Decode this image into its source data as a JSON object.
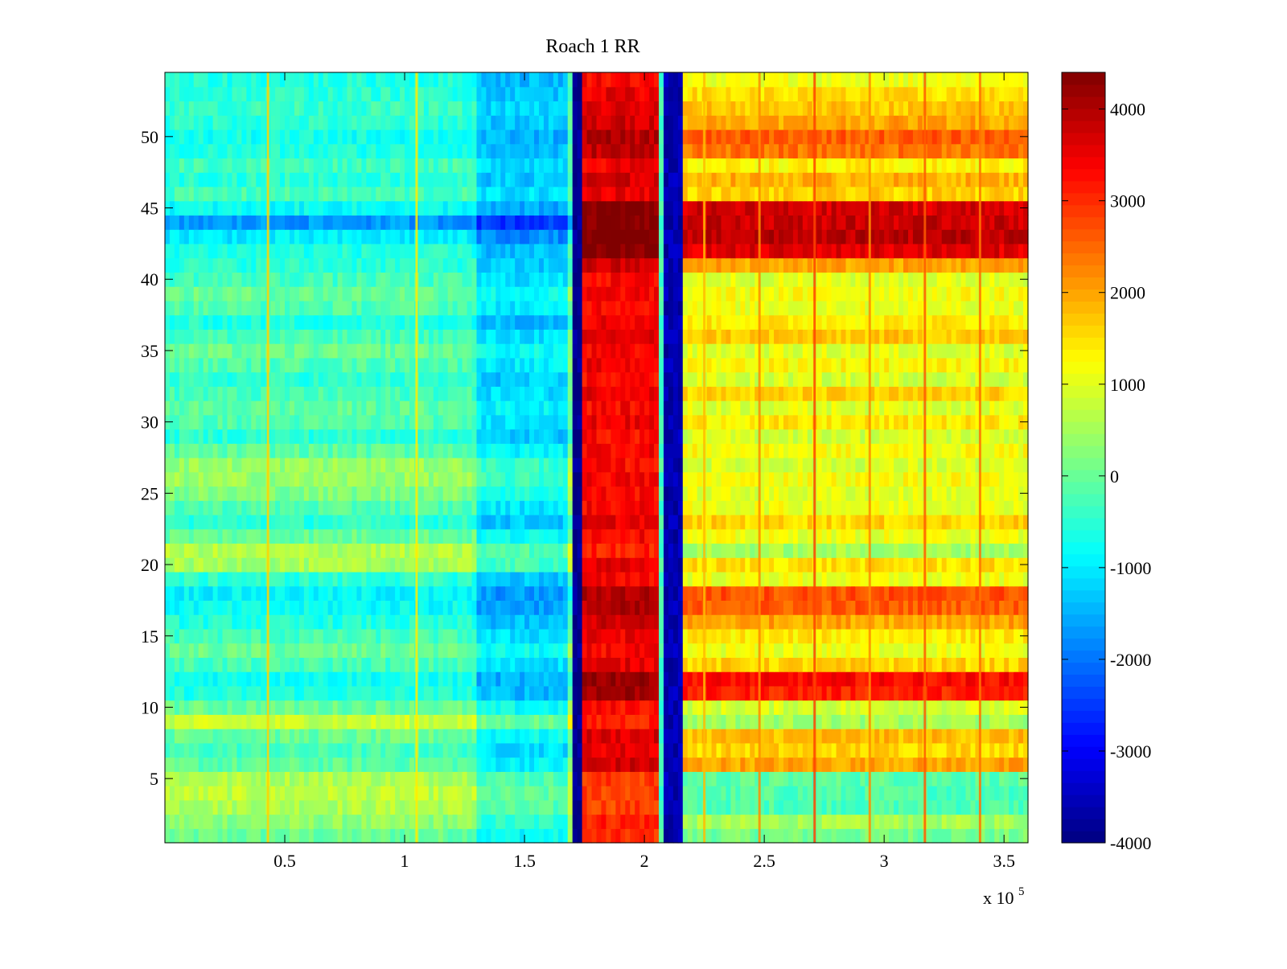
{
  "chart_data": {
    "type": "heatmap",
    "title": "Roach 1 RR",
    "xlabel": "",
    "ylabel": "",
    "x_exponent_label": "x 10",
    "x_exponent_power": "5",
    "x_range": [
      0,
      3.6
    ],
    "y_range": [
      0.5,
      54.5
    ],
    "x_ticks": [
      {
        "value": 0.5,
        "label": "0.5"
      },
      {
        "value": 1.0,
        "label": "1"
      },
      {
        "value": 1.5,
        "label": "1.5"
      },
      {
        "value": 2.0,
        "label": "2"
      },
      {
        "value": 2.5,
        "label": "2.5"
      },
      {
        "value": 3.0,
        "label": "3"
      },
      {
        "value": 3.5,
        "label": "3.5"
      }
    ],
    "y_ticks": [
      {
        "value": 5,
        "label": "5"
      },
      {
        "value": 10,
        "label": "10"
      },
      {
        "value": 15,
        "label": "15"
      },
      {
        "value": 20,
        "label": "20"
      },
      {
        "value": 25,
        "label": "25"
      },
      {
        "value": 30,
        "label": "30"
      },
      {
        "value": 35,
        "label": "35"
      },
      {
        "value": 40,
        "label": "40"
      },
      {
        "value": 45,
        "label": "45"
      },
      {
        "value": 50,
        "label": "50"
      }
    ],
    "rows": 54,
    "colorbar": {
      "colormap": "jet",
      "range": [
        -4000,
        4400
      ],
      "ticks": [
        {
          "value": 4000,
          "label": "4000"
        },
        {
          "value": 3000,
          "label": "3000"
        },
        {
          "value": 2000,
          "label": "2000"
        },
        {
          "value": 1000,
          "label": "1000"
        },
        {
          "value": 0,
          "label": "0"
        },
        {
          "value": -1000,
          "label": "-1000"
        },
        {
          "value": -2000,
          "label": "-2000"
        },
        {
          "value": -3000,
          "label": "-3000"
        },
        {
          "value": -4000,
          "label": "-4000"
        }
      ]
    },
    "column_segments": [
      {
        "x_start": 0.0,
        "x_end": 1.3,
        "base_value": -300
      },
      {
        "x_start": 1.3,
        "x_end": 1.69,
        "base_value": -1100
      },
      {
        "x_start": 1.69,
        "x_end": 1.71,
        "base_value": 0
      },
      {
        "x_start": 1.71,
        "x_end": 1.75,
        "base_value": -3900
      },
      {
        "x_start": 1.75,
        "x_end": 2.06,
        "base_value": 3200
      },
      {
        "x_start": 2.06,
        "x_end": 2.08,
        "base_value": -300
      },
      {
        "x_start": 2.08,
        "x_end": 2.17,
        "base_value": -3600
      },
      {
        "x_start": 2.17,
        "x_end": 3.6,
        "base_value": 700
      }
    ],
    "vertical_streaks": [
      {
        "x": 0.43,
        "value": 1600
      },
      {
        "x": 1.05,
        "value": 1400
      },
      {
        "x": 2.25,
        "value": 1800
      },
      {
        "x": 2.48,
        "value": 2200
      },
      {
        "x": 2.71,
        "value": 2800
      },
      {
        "x": 2.94,
        "value": 2200
      },
      {
        "x": 3.17,
        "value": 2600
      },
      {
        "x": 3.4,
        "value": 2400
      }
    ],
    "row_offsets": [
      {
        "row": 1,
        "left": 300,
        "right": -600
      },
      {
        "row": 2,
        "left": 600,
        "right": -200
      },
      {
        "row": 3,
        "left": 900,
        "right": -900
      },
      {
        "row": 4,
        "left": 1000,
        "right": -900
      },
      {
        "row": 5,
        "left": 900,
        "right": -800
      },
      {
        "row": 6,
        "left": 200,
        "right": 1300
      },
      {
        "row": 7,
        "left": 0,
        "right": 900
      },
      {
        "row": 8,
        "left": 300,
        "right": 1100
      },
      {
        "row": 9,
        "left": 1100,
        "right": -200
      },
      {
        "row": 10,
        "left": 300,
        "right": 200
      },
      {
        "row": 11,
        "left": -300,
        "right": 2400
      },
      {
        "row": 12,
        "left": -400,
        "right": 2600
      },
      {
        "row": 13,
        "left": 0,
        "right": 900
      },
      {
        "row": 14,
        "left": 300,
        "right": 400
      },
      {
        "row": 15,
        "left": 0,
        "right": 700
      },
      {
        "row": 16,
        "left": -300,
        "right": 1300
      },
      {
        "row": 17,
        "left": -500,
        "right": 1900
      },
      {
        "row": 18,
        "left": -600,
        "right": 2000
      },
      {
        "row": 19,
        "left": -200,
        "right": 400
      },
      {
        "row": 20,
        "left": 800,
        "right": 800
      },
      {
        "row": 21,
        "left": 900,
        "right": -200
      },
      {
        "row": 22,
        "left": 300,
        "right": 400
      },
      {
        "row": 23,
        "left": -200,
        "right": 900
      },
      {
        "row": 24,
        "left": 100,
        "right": 400
      },
      {
        "row": 25,
        "left": 500,
        "right": 300
      },
      {
        "row": 26,
        "left": 700,
        "right": 500
      },
      {
        "row": 27,
        "left": 700,
        "right": 200
      },
      {
        "row": 28,
        "left": 200,
        "right": 500
      },
      {
        "row": 29,
        "left": -200,
        "right": 200
      },
      {
        "row": 30,
        "left": 100,
        "right": 700
      },
      {
        "row": 31,
        "left": 200,
        "right": 300
      },
      {
        "row": 32,
        "left": 0,
        "right": 900
      },
      {
        "row": 33,
        "left": -200,
        "right": 200
      },
      {
        "row": 34,
        "left": 100,
        "right": 600
      },
      {
        "row": 35,
        "left": 300,
        "right": 300
      },
      {
        "row": 36,
        "left": 0,
        "right": 1000
      },
      {
        "row": 37,
        "left": -300,
        "right": 700
      },
      {
        "row": 38,
        "left": 100,
        "right": 400
      },
      {
        "row": 39,
        "left": 300,
        "right": 500
      },
      {
        "row": 40,
        "left": 0,
        "right": 300
      },
      {
        "row": 41,
        "left": -200,
        "right": 1300
      },
      {
        "row": 42,
        "left": -300,
        "right": 2900
      },
      {
        "row": 43,
        "left": -700,
        "right": 3200
      },
      {
        "row": 44,
        "left": -1400,
        "right": 3100
      },
      {
        "row": 45,
        "left": -500,
        "right": 3000
      },
      {
        "row": 46,
        "left": 0,
        "right": 900
      },
      {
        "row": 47,
        "left": -200,
        "right": 1200
      },
      {
        "row": 48,
        "left": 0,
        "right": 600
      },
      {
        "row": 49,
        "left": -300,
        "right": 1700
      },
      {
        "row": 50,
        "left": -400,
        "right": 1900
      },
      {
        "row": 51,
        "left": -200,
        "right": 1300
      },
      {
        "row": 52,
        "left": -100,
        "right": 1000
      },
      {
        "row": 53,
        "left": -200,
        "right": 800
      },
      {
        "row": 54,
        "left": -300,
        "right": 400
      }
    ]
  }
}
